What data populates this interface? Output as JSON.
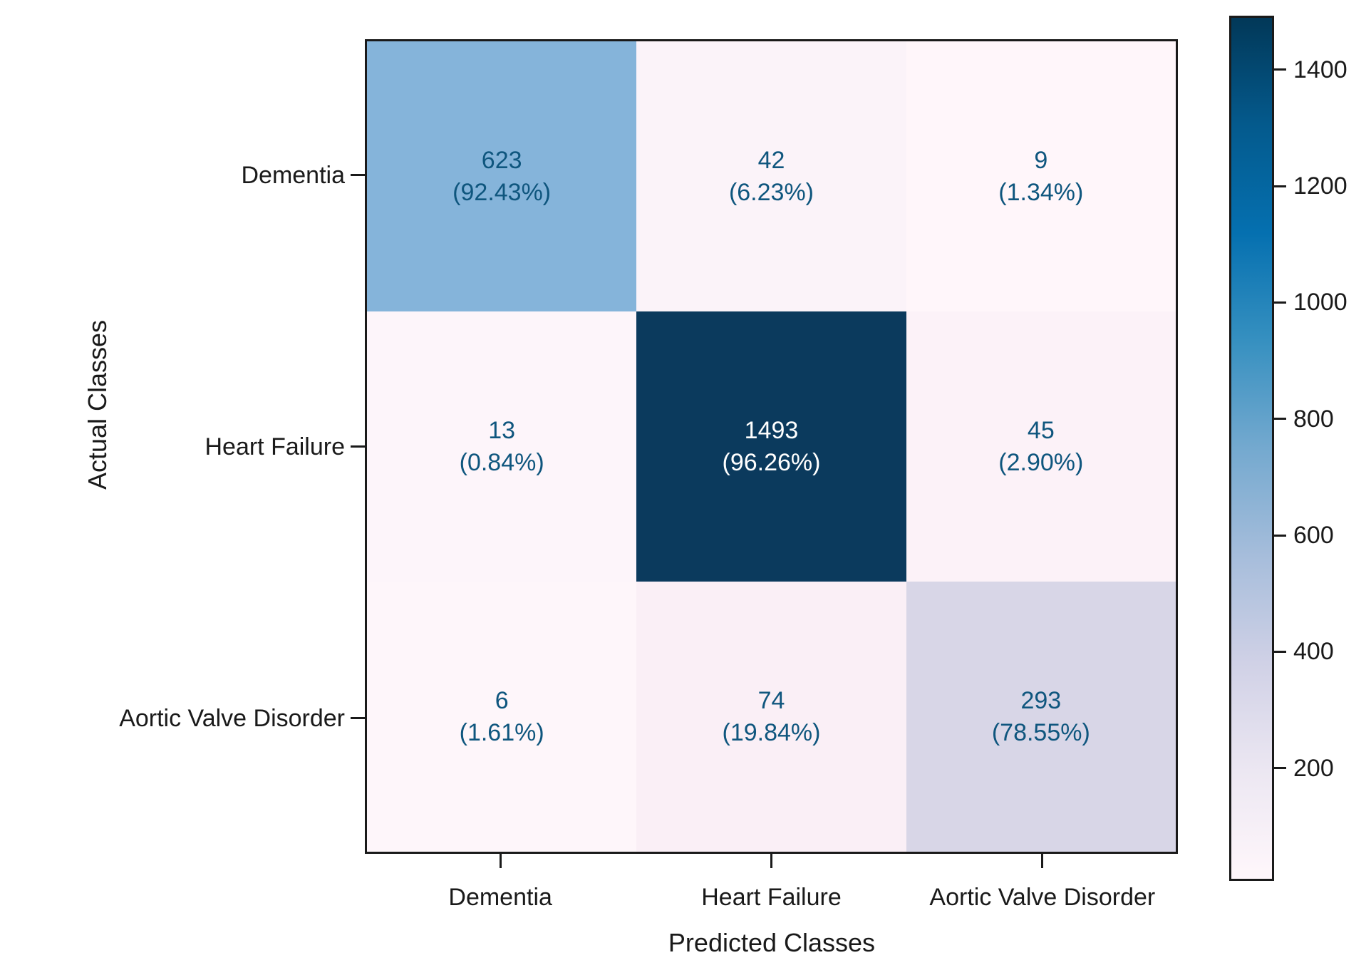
{
  "figure": {
    "background": "#ffffff",
    "axis_color": "#1a1a1a",
    "dark_text_color": "#0f567e",
    "light_text_color": "#ffffff"
  },
  "chart_data": {
    "type": "heatmap",
    "subtype": "confusion-matrix",
    "xlabel": "Predicted Classes",
    "ylabel": "Actual Classes",
    "categories": [
      "Dementia",
      "Heart Failure",
      "Aortic Valve Disorder"
    ],
    "grid": false,
    "legend_position": "right-colorbar",
    "colormap": "PuBu",
    "vmin": 6,
    "vmax": 1493,
    "rows": [
      {
        "actual": "Dementia",
        "cells": [
          {
            "count": "623",
            "percent": "(92.43%)",
            "bg": "#85b4da",
            "text": "dark"
          },
          {
            "count": "42",
            "percent": "(6.23%)",
            "bg": "#fbf3f9",
            "text": "dark"
          },
          {
            "count": "9",
            "percent": "(1.34%)",
            "bg": "#fff6fa",
            "text": "dark"
          }
        ]
      },
      {
        "actual": "Heart Failure",
        "cells": [
          {
            "count": "13",
            "percent": "(0.84%)",
            "bg": "#fdf5fa",
            "text": "dark"
          },
          {
            "count": "1493",
            "percent": "(96.26%)",
            "bg": "#0b3a5d",
            "text": "light"
          },
          {
            "count": "45",
            "percent": "(2.90%)",
            "bg": "#fcf2f8",
            "text": "dark"
          }
        ]
      },
      {
        "actual": "Aortic Valve Disorder",
        "cells": [
          {
            "count": "6",
            "percent": "(1.61%)",
            "bg": "#fef6fa",
            "text": "dark"
          },
          {
            "count": "74",
            "percent": "(19.84%)",
            "bg": "#faeff6",
            "text": "dark"
          },
          {
            "count": "293",
            "percent": "(78.55%)",
            "bg": "#d8d6e7",
            "text": "dark"
          }
        ]
      }
    ],
    "colorbar": {
      "tick_values": [
        "200",
        "400",
        "600",
        "800",
        "1000",
        "1200",
        "1400"
      ],
      "gradient_stops_bottom_to_top": [
        "#fff7fb",
        "#ece7f2",
        "#d0d1e6",
        "#a6bddb",
        "#74a9cf",
        "#3690c0",
        "#0570b0",
        "#045a8d",
        "#023858"
      ]
    }
  }
}
